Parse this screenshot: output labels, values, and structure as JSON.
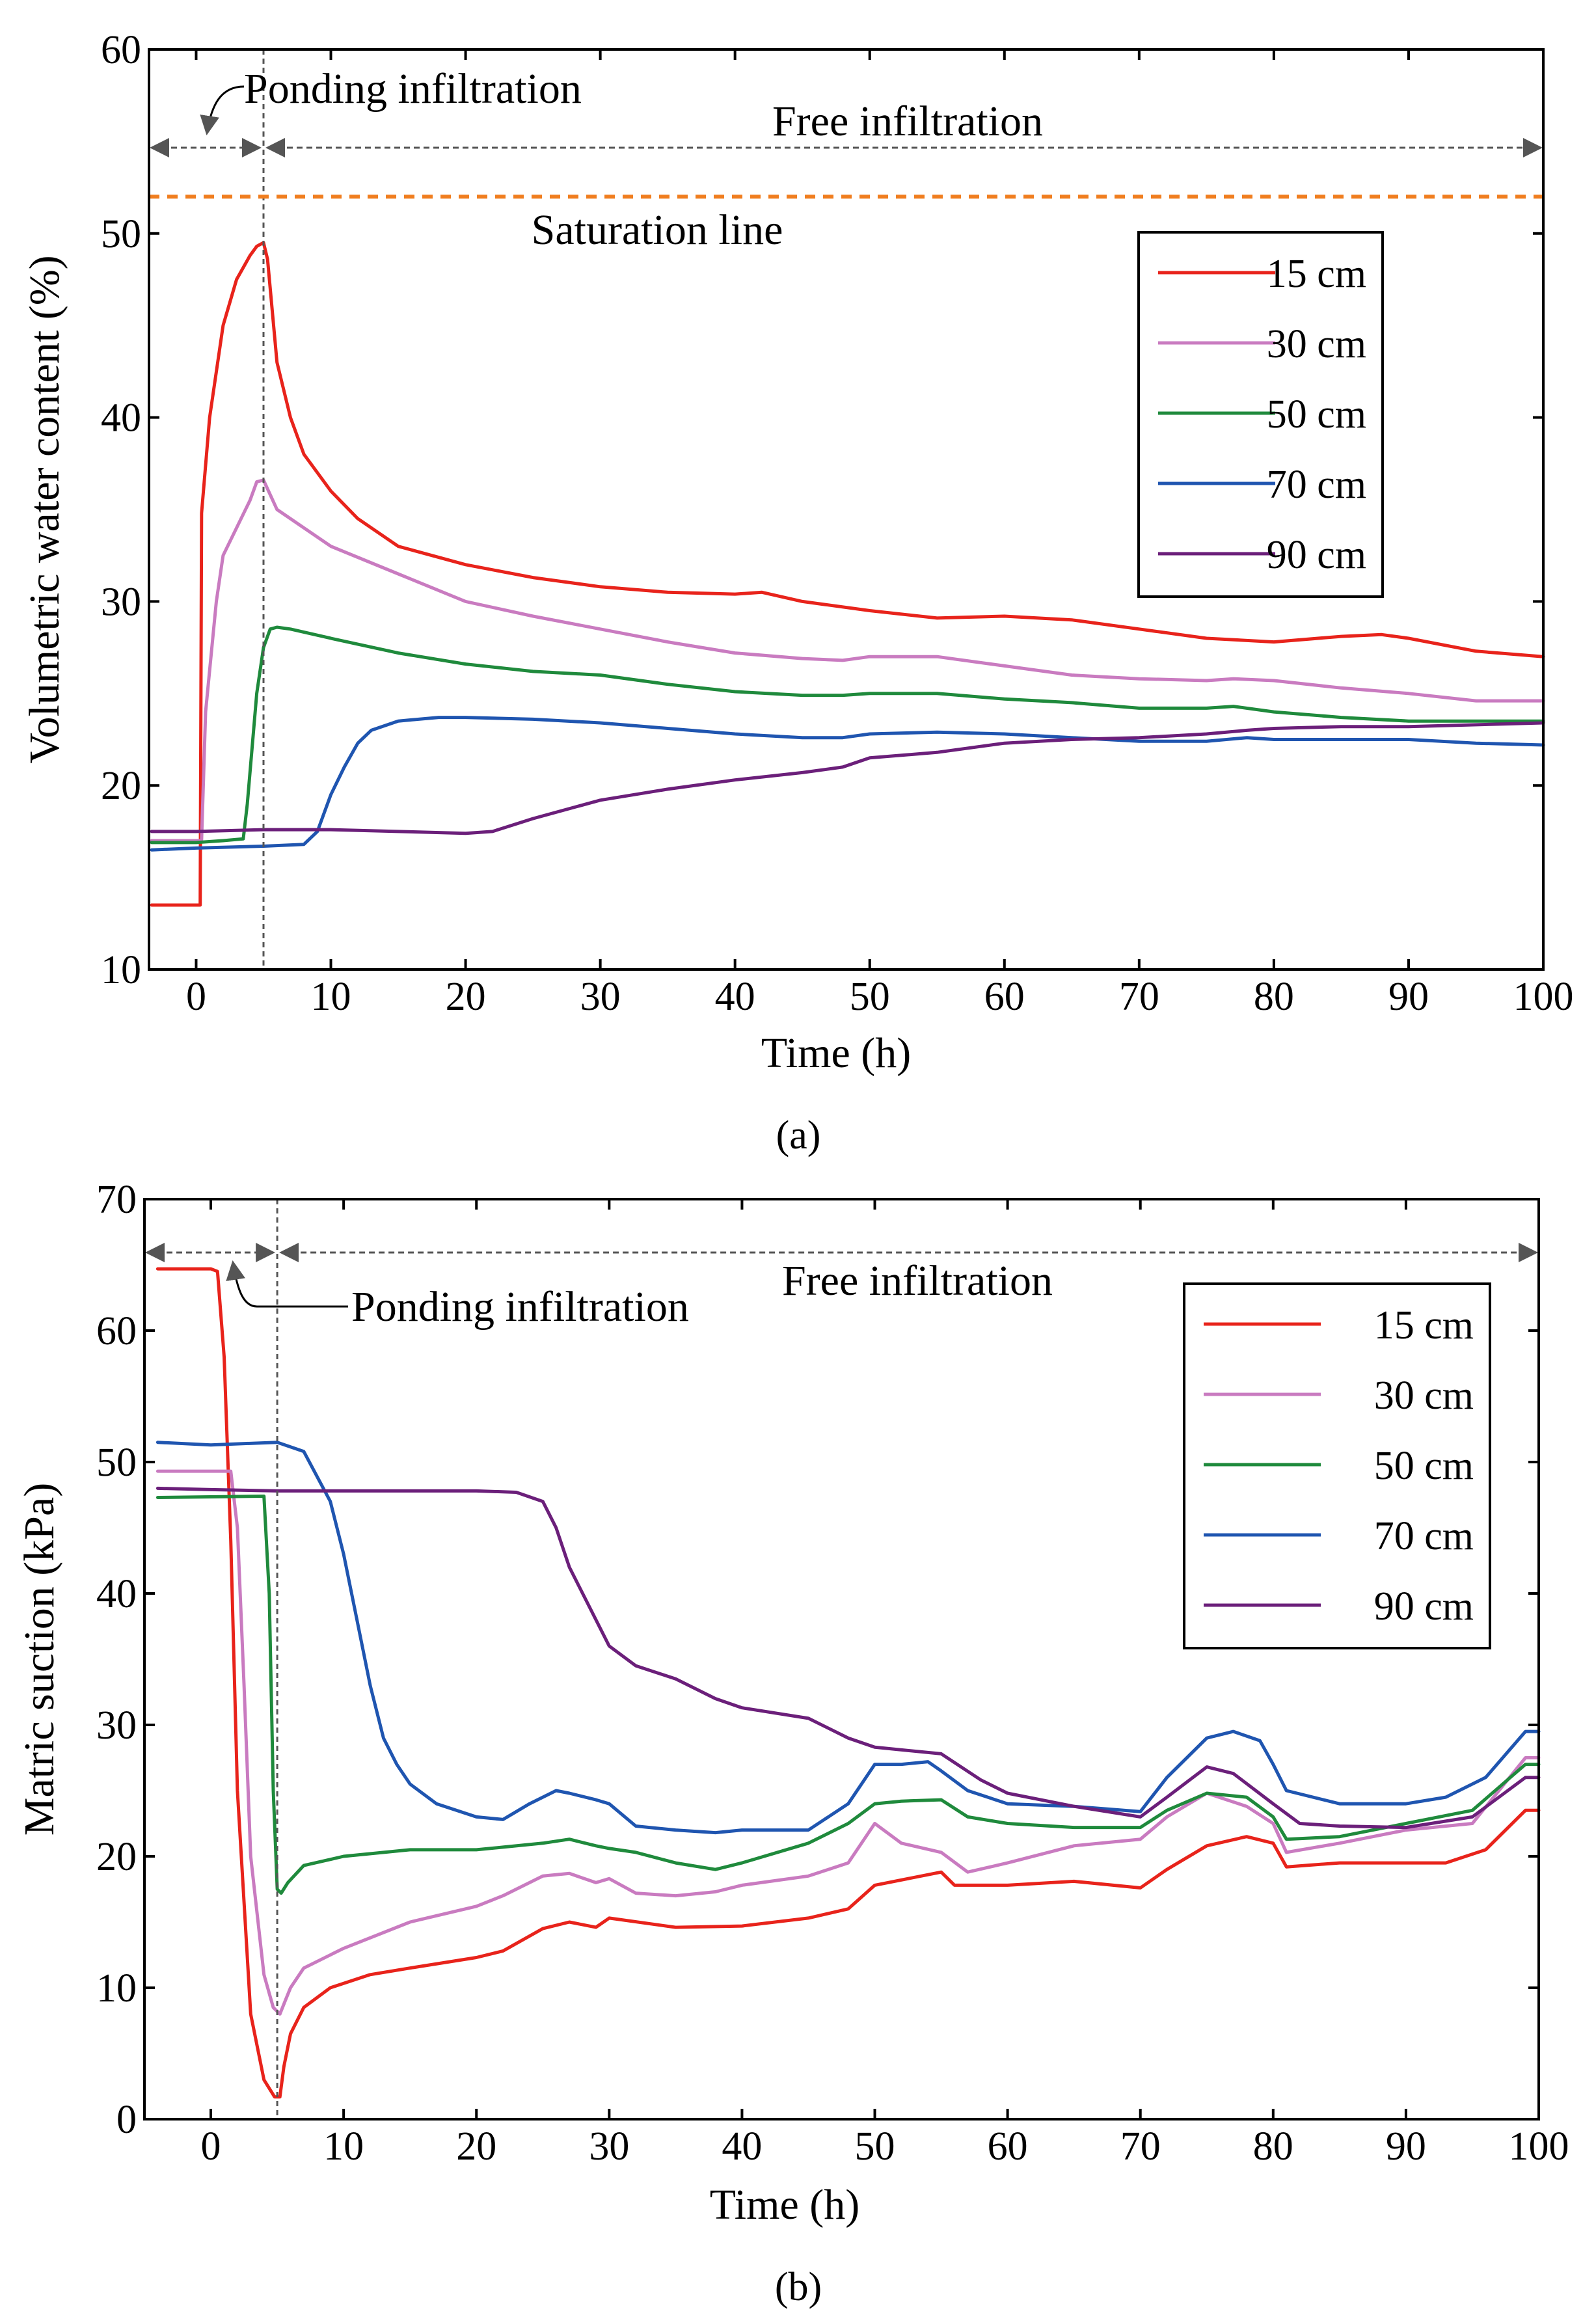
{
  "chart_data": [
    {
      "type": "line",
      "caption": "(a)",
      "xlabel": "Time (h)",
      "ylabel": "Volumetric water content (%)",
      "xlim": [
        -3.5,
        100
      ],
      "ylim": [
        10,
        60
      ],
      "xticks": [
        0,
        10,
        20,
        30,
        40,
        50,
        60,
        70,
        80,
        90,
        100
      ],
      "yticks": [
        10,
        20,
        30,
        40,
        50,
        60
      ],
      "annotations": {
        "ponding": "Ponding infiltration",
        "free": "Free infiltration",
        "saturation": "Saturation line",
        "saturation_value": 52,
        "divider_x": 5
      },
      "series": [
        {
          "name": "15 cm",
          "color": "#e8231b",
          "x": [
            -3.3,
            0.3,
            0.4,
            1,
            2,
            3,
            4,
            4.5,
            5,
            5.3,
            6,
            7,
            8,
            10,
            12,
            15,
            20,
            25,
            30,
            35,
            40,
            42,
            45,
            50,
            55,
            60,
            65,
            70,
            75,
            80,
            85,
            88,
            90,
            95,
            100
          ],
          "y": [
            13.5,
            13.5,
            34.8,
            40,
            45,
            47.5,
            48.8,
            49.3,
            49.5,
            48.6,
            43,
            40,
            38,
            36,
            34.5,
            33,
            32,
            31.3,
            30.8,
            30.5,
            30.4,
            30.5,
            30,
            29.5,
            29.1,
            29.2,
            29,
            28.5,
            28,
            27.8,
            28.1,
            28.2,
            28,
            27.3,
            27.0
          ]
        },
        {
          "name": "30 cm",
          "color": "#c97bc0",
          "x": [
            -3.3,
            0,
            0.4,
            0.7,
            1.5,
            2,
            3,
            4,
            4.5,
            5,
            6,
            8,
            10,
            15,
            20,
            25,
            30,
            35,
            40,
            45,
            48,
            50,
            55,
            60,
            65,
            70,
            75,
            77,
            80,
            85,
            90,
            95,
            100
          ],
          "y": [
            17,
            17,
            17,
            24,
            30,
            32.5,
            34,
            35.5,
            36.5,
            36.6,
            35,
            34,
            33,
            31.5,
            30,
            29.2,
            28.5,
            27.8,
            27.2,
            26.9,
            26.8,
            27,
            27,
            26.5,
            26,
            25.8,
            25.7,
            25.8,
            25.7,
            25.3,
            25,
            24.6,
            24.6
          ]
        },
        {
          "name": "50 cm",
          "color": "#1f8a3c",
          "x": [
            -3.3,
            0,
            2,
            3.5,
            3.8,
            4.5,
            5,
            5.5,
            6,
            7,
            10,
            15,
            20,
            25,
            30,
            35,
            40,
            45,
            48,
            50,
            55,
            60,
            65,
            70,
            75,
            77,
            80,
            85,
            90,
            95,
            100
          ],
          "y": [
            16.9,
            16.9,
            17,
            17.1,
            19,
            25,
            27.5,
            28.5,
            28.6,
            28.5,
            28,
            27.2,
            26.6,
            26.2,
            26,
            25.5,
            25.1,
            24.9,
            24.9,
            25,
            25,
            24.7,
            24.5,
            24.2,
            24.2,
            24.3,
            24,
            23.7,
            23.5,
            23.5,
            23.5
          ]
        },
        {
          "name": "70 cm",
          "color": "#1f55b0",
          "x": [
            -3.3,
            0,
            5,
            8,
            9,
            10,
            11,
            12,
            13,
            15,
            18,
            20,
            25,
            30,
            35,
            40,
            45,
            48,
            50,
            55,
            60,
            65,
            70,
            75,
            78,
            80,
            85,
            90,
            95,
            100
          ],
          "y": [
            16.5,
            16.6,
            16.7,
            16.8,
            17.5,
            19.5,
            21,
            22.3,
            23,
            23.5,
            23.7,
            23.7,
            23.6,
            23.4,
            23.1,
            22.8,
            22.6,
            22.6,
            22.8,
            22.9,
            22.8,
            22.6,
            22.4,
            22.4,
            22.6,
            22.5,
            22.5,
            22.5,
            22.3,
            22.2
          ]
        },
        {
          "name": "90 cm",
          "color": "#6b1f7a",
          "x": [
            -3.3,
            0,
            5,
            10,
            15,
            20,
            22,
            25,
            30,
            35,
            40,
            45,
            48,
            50,
            55,
            60,
            65,
            70,
            75,
            78,
            80,
            85,
            90,
            95,
            100
          ],
          "y": [
            17.5,
            17.5,
            17.6,
            17.6,
            17.5,
            17.4,
            17.5,
            18.2,
            19.2,
            19.8,
            20.3,
            20.7,
            21,
            21.5,
            21.8,
            22.3,
            22.5,
            22.6,
            22.8,
            23,
            23.1,
            23.2,
            23.2,
            23.3,
            23.4
          ]
        }
      ]
    },
    {
      "type": "line",
      "caption": "(b)",
      "xlabel": "Time (h)",
      "ylabel": "Matric suction (kPa)",
      "xlim": [
        -5,
        100
      ],
      "ylim": [
        0,
        70
      ],
      "xticks": [
        0,
        10,
        20,
        30,
        40,
        50,
        60,
        70,
        80,
        90,
        100
      ],
      "yticks": [
        0,
        10,
        20,
        30,
        40,
        50,
        60,
        70
      ],
      "annotations": {
        "ponding": "Ponding infiltration",
        "free": "Free infiltration",
        "divider_x": 5
      },
      "series": [
        {
          "name": "15 cm",
          "color": "#e8231b",
          "x": [
            -4,
            0,
            0.5,
            1,
            1.5,
            2,
            3,
            4,
            4.8,
            5.2,
            5.5,
            6,
            7,
            9,
            12,
            15,
            20,
            22,
            25,
            27,
            29,
            30,
            35,
            40,
            45,
            48,
            50,
            55,
            56,
            60,
            65,
            70,
            72,
            75,
            78,
            80,
            81,
            85,
            90,
            93,
            96,
            99,
            100
          ],
          "y": [
            64.7,
            64.7,
            64.5,
            58,
            44,
            25,
            8,
            3,
            1.7,
            1.7,
            4,
            6.5,
            8.5,
            10,
            11,
            11.5,
            12.3,
            12.8,
            14.5,
            15,
            14.6,
            15.3,
            14.6,
            14.7,
            15.3,
            16,
            17.8,
            18.8,
            17.8,
            17.8,
            18.1,
            17.6,
            19,
            20.8,
            21.5,
            21,
            19.2,
            19.5,
            19.5,
            19.5,
            20.5,
            23.5,
            23.5
          ]
        },
        {
          "name": "30 cm",
          "color": "#c97bc0",
          "x": [
            -4,
            1.5,
            2,
            2.5,
            3,
            4,
            4.7,
            5.2,
            5.6,
            6,
            7,
            10,
            15,
            20,
            22,
            25,
            27,
            29,
            30,
            32,
            35,
            38,
            40,
            45,
            48,
            50,
            52,
            55,
            57,
            60,
            65,
            70,
            72,
            75,
            78,
            80,
            81,
            85,
            90,
            95,
            99,
            100
          ],
          "y": [
            49.3,
            49.3,
            45,
            33,
            20,
            11,
            8.5,
            8,
            9,
            10,
            11.5,
            13,
            15,
            16.2,
            17,
            18.5,
            18.7,
            18,
            18.3,
            17.2,
            17,
            17.3,
            17.8,
            18.5,
            19.5,
            22.5,
            21,
            20.3,
            18.8,
            19.5,
            20.8,
            21.3,
            23,
            24.8,
            23.8,
            22.5,
            20.3,
            21,
            22,
            22.5,
            27.5,
            27.5
          ]
        },
        {
          "name": "50 cm",
          "color": "#1f8a3c",
          "x": [
            -4,
            4,
            4.4,
            4.7,
            5,
            5.3,
            5.8,
            7,
            10,
            15,
            20,
            22,
            25,
            27,
            29,
            30,
            32,
            35,
            38,
            40,
            45,
            48,
            50,
            52,
            55,
            57,
            60,
            65,
            70,
            72,
            75,
            78,
            80,
            81,
            85,
            90,
            95,
            99,
            100
          ],
          "y": [
            47.3,
            47.4,
            40,
            25,
            17.5,
            17.2,
            18,
            19.3,
            20,
            20.5,
            20.5,
            20.7,
            21,
            21.3,
            20.8,
            20.6,
            20.3,
            19.5,
            19,
            19.5,
            21,
            22.5,
            24,
            24.2,
            24.3,
            23,
            22.5,
            22.2,
            22.2,
            23.5,
            24.8,
            24.5,
            23,
            21.3,
            21.5,
            22.5,
            23.5,
            27,
            27
          ]
        },
        {
          "name": "70 cm",
          "color": "#1f55b0",
          "x": [
            -4,
            0,
            5,
            7,
            9,
            10,
            11,
            12,
            13,
            14,
            15,
            17,
            20,
            22,
            24,
            26,
            27,
            29,
            30,
            32,
            35,
            38,
            40,
            45,
            48,
            50,
            52,
            54,
            55,
            57,
            60,
            65,
            70,
            72,
            75,
            77,
            79,
            80,
            81,
            85,
            90,
            93,
            96,
            99,
            100
          ],
          "y": [
            51.5,
            51.3,
            51.5,
            50.8,
            47,
            43,
            38,
            33,
            29,
            27,
            25.5,
            24,
            23,
            22.8,
            24,
            25,
            24.8,
            24.3,
            24,
            22.3,
            22,
            21.8,
            22,
            22,
            24,
            27,
            27,
            27.2,
            26.5,
            25,
            24,
            23.8,
            23.4,
            26,
            29,
            29.5,
            28.8,
            27,
            25,
            24,
            24,
            24.5,
            26,
            29.5,
            29.5
          ]
        },
        {
          "name": "90 cm",
          "color": "#6b1f7a",
          "x": [
            -4,
            0,
            5,
            10,
            15,
            20,
            23,
            25,
            26,
            27,
            28,
            30,
            32,
            35,
            38,
            40,
            45,
            48,
            50,
            55,
            58,
            60,
            65,
            70,
            72,
            75,
            77,
            80,
            82,
            85,
            90,
            95,
            99,
            100
          ],
          "y": [
            48,
            47.9,
            47.8,
            47.8,
            47.8,
            47.8,
            47.7,
            47,
            45,
            42,
            40,
            36,
            34.5,
            33.5,
            32,
            31.3,
            30.5,
            29,
            28.3,
            27.8,
            25.8,
            24.8,
            23.8,
            23,
            24.5,
            26.8,
            26.3,
            24,
            22.5,
            22.3,
            22.2,
            23,
            26,
            26
          ]
        }
      ]
    }
  ]
}
